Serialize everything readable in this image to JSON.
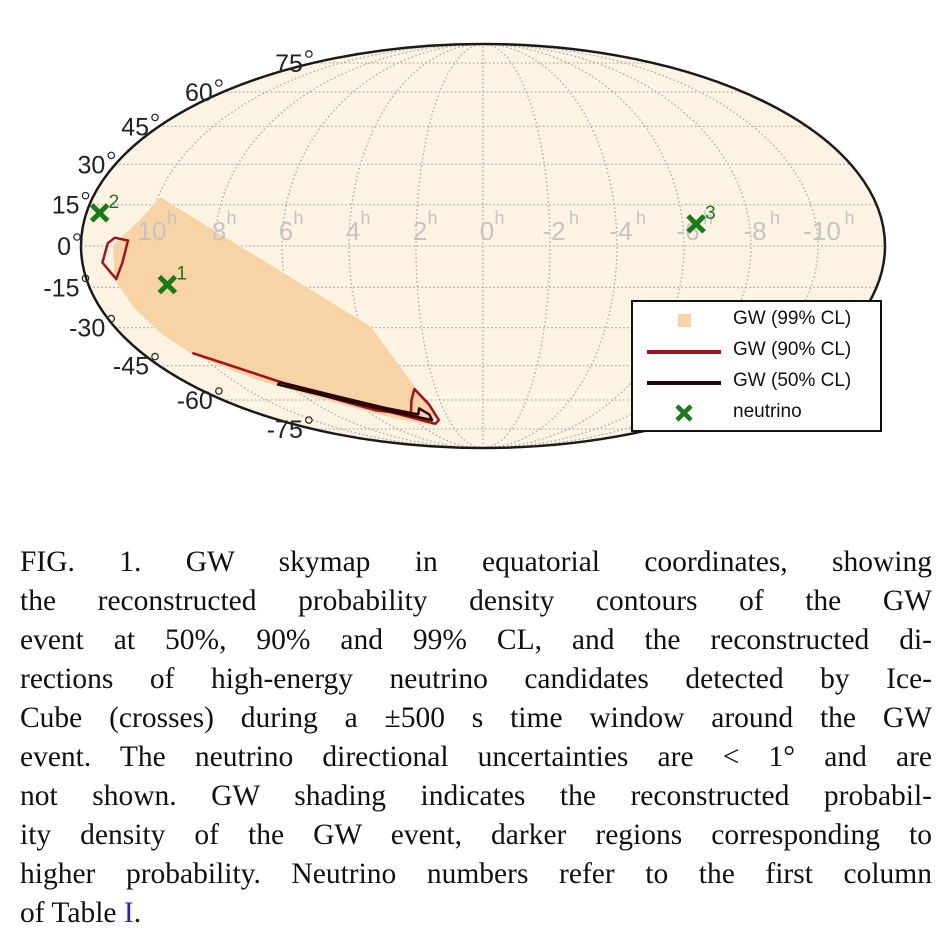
{
  "chart_data": {
    "type": "scatter",
    "projection": "mollweide",
    "coordinate_system": "equatorial",
    "title": "",
    "ra_tick_labels": [
      "10",
      "8",
      "6",
      "4",
      "2",
      "0",
      "-2",
      "-4",
      "-6",
      "-8",
      "-10"
    ],
    "ra_tick_values_h": [
      10,
      8,
      6,
      4,
      2,
      0,
      -2,
      -4,
      -6,
      -8,
      -10
    ],
    "ra_unit_superscript": "h",
    "dec_tick_labels": [
      "75",
      "60",
      "45",
      "30",
      "15",
      "0",
      "-15",
      "-30",
      "-45",
      "-60",
      "-75"
    ],
    "dec_tick_values_deg": [
      75,
      60,
      45,
      30,
      15,
      0,
      -15,
      -30,
      -45,
      -60,
      -75
    ],
    "dec_unit_symbol": "°",
    "grid": true,
    "legend_position": "bottom-right",
    "legend": [
      {
        "label": "GW (99% CL)",
        "symbol": "square",
        "color": "#f7d3a6"
      },
      {
        "label": "GW (90% CL)",
        "symbol": "line",
        "color": "#a3121c"
      },
      {
        "label": "GW (50% CL)",
        "symbol": "line",
        "color": "#2a0508"
      },
      {
        "label": "neutrino",
        "symbol": "x",
        "color": "#1a7a1a"
      }
    ],
    "neutrinos": [
      {
        "id": "1",
        "ra_h": 9.6,
        "dec_deg": -14
      },
      {
        "id": "2",
        "ra_h": 11.6,
        "dec_deg": 12
      },
      {
        "id": "3",
        "ra_h": -6.4,
        "dec_deg": 8
      }
    ],
    "gw_regions": {
      "cl99_band": [
        [
          9.9,
          17
        ],
        [
          10.3,
          9
        ],
        [
          11.0,
          0
        ],
        [
          11.1,
          -12
        ],
        [
          10.9,
          -22
        ],
        [
          10.6,
          -32
        ],
        [
          10.2,
          -40
        ],
        [
          9.0,
          -50
        ],
        [
          7.0,
          -60
        ],
        [
          5.0,
          -68
        ],
        [
          3.2,
          -72
        ],
        [
          2.6,
          -66
        ],
        [
          2.9,
          -55
        ],
        [
          3.4,
          -38
        ],
        [
          3.7,
          -30
        ]
      ],
      "cl90_contours": [
        [
          [
            11.0,
            3
          ],
          [
            10.6,
            2
          ],
          [
            10.8,
            -6
          ],
          [
            11.1,
            -12
          ],
          [
            11.4,
            -6
          ],
          [
            11.2,
            1
          ]
        ],
        [
          [
            10.2,
            -40
          ],
          [
            9.5,
            -44
          ],
          [
            8.0,
            -53
          ],
          [
            6.0,
            -62
          ],
          [
            4.5,
            -67
          ],
          [
            3.0,
            -72
          ],
          [
            2.6,
            -70
          ],
          [
            2.6,
            -62
          ],
          [
            2.9,
            -55
          ],
          [
            3.3,
            -60
          ],
          [
            3.9,
            -67
          ],
          [
            5.5,
            -65
          ],
          [
            7.5,
            -56
          ],
          [
            9.0,
            -47
          ]
        ]
      ],
      "cl50_contours": [
        [
          [
            8.4,
            -53
          ],
          [
            6.5,
            -60
          ],
          [
            4.6,
            -66
          ],
          [
            3.0,
            -70
          ],
          [
            2.9,
            -67
          ],
          [
            3.2,
            -64
          ],
          [
            3.5,
            -67
          ],
          [
            4.8,
            -64
          ],
          [
            6.6,
            -58
          ],
          [
            8.2,
            -52
          ]
        ]
      ]
    },
    "colors": {
      "sky_fill": "#fdf3e3",
      "grid": "#a8a8a8",
      "outline": "#1a1a1a",
      "cl99": "#f7d3a6",
      "cl90": "#a3121c",
      "cl50": "#2a0508",
      "neutrino": "#1a7a1a"
    }
  },
  "caption": {
    "lines": [
      "FIG. 1.  GW skymap in equatorial coordinates, showing",
      "the reconstructed probability density contours of the GW",
      "event at 50%, 90% and 99% CL, and the reconstructed di-",
      "rections of high-energy neutrino candidates detected by Ice-",
      "Cube (crosses) during a ±500 s time window around the GW",
      "event.  The neutrino directional uncertainties are < 1° and are",
      "not shown.  GW shading indicates the reconstructed probabil-",
      "ity density of the GW event, darker regions corresponding to",
      "higher probability.  Neutrino numbers refer to the first column"
    ],
    "last_line_prefix": "of Table ",
    "last_line_link": "I",
    "last_line_suffix": "."
  }
}
